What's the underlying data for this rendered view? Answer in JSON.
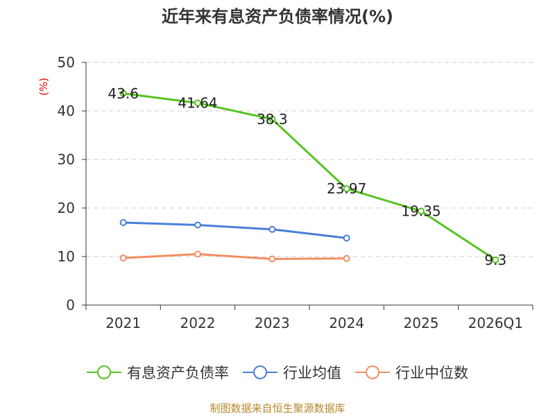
{
  "chart_data": {
    "type": "line",
    "title": "近年来有息资产负债率情况(%)",
    "ylabel": "(%)",
    "xlabel": "",
    "categories": [
      "2021",
      "2022",
      "2023",
      "2024",
      "2025",
      "2026Q1"
    ],
    "ylim": [
      0,
      50
    ],
    "yticks": [
      0,
      10,
      20,
      30,
      40,
      50
    ],
    "grid": true,
    "legend_position": "bottom",
    "series": [
      {
        "name": "有息资产负债率",
        "color": "#58c322",
        "values": [
          43.6,
          41.64,
          38.3,
          23.97,
          19.35,
          9.3
        ],
        "labels": [
          "43.6",
          "41.64",
          "38.3",
          "23.97",
          "19.35",
          "9.3"
        ]
      },
      {
        "name": "行业均值",
        "color": "#4a7fd6",
        "values": [
          17.0,
          16.5,
          15.6,
          13.8,
          null,
          null
        ]
      },
      {
        "name": "行业中位数",
        "color": "#f28e62",
        "values": [
          9.7,
          10.5,
          9.5,
          9.6,
          null,
          null
        ]
      }
    ]
  },
  "source": "制图数据来自恒生聚源数据库"
}
